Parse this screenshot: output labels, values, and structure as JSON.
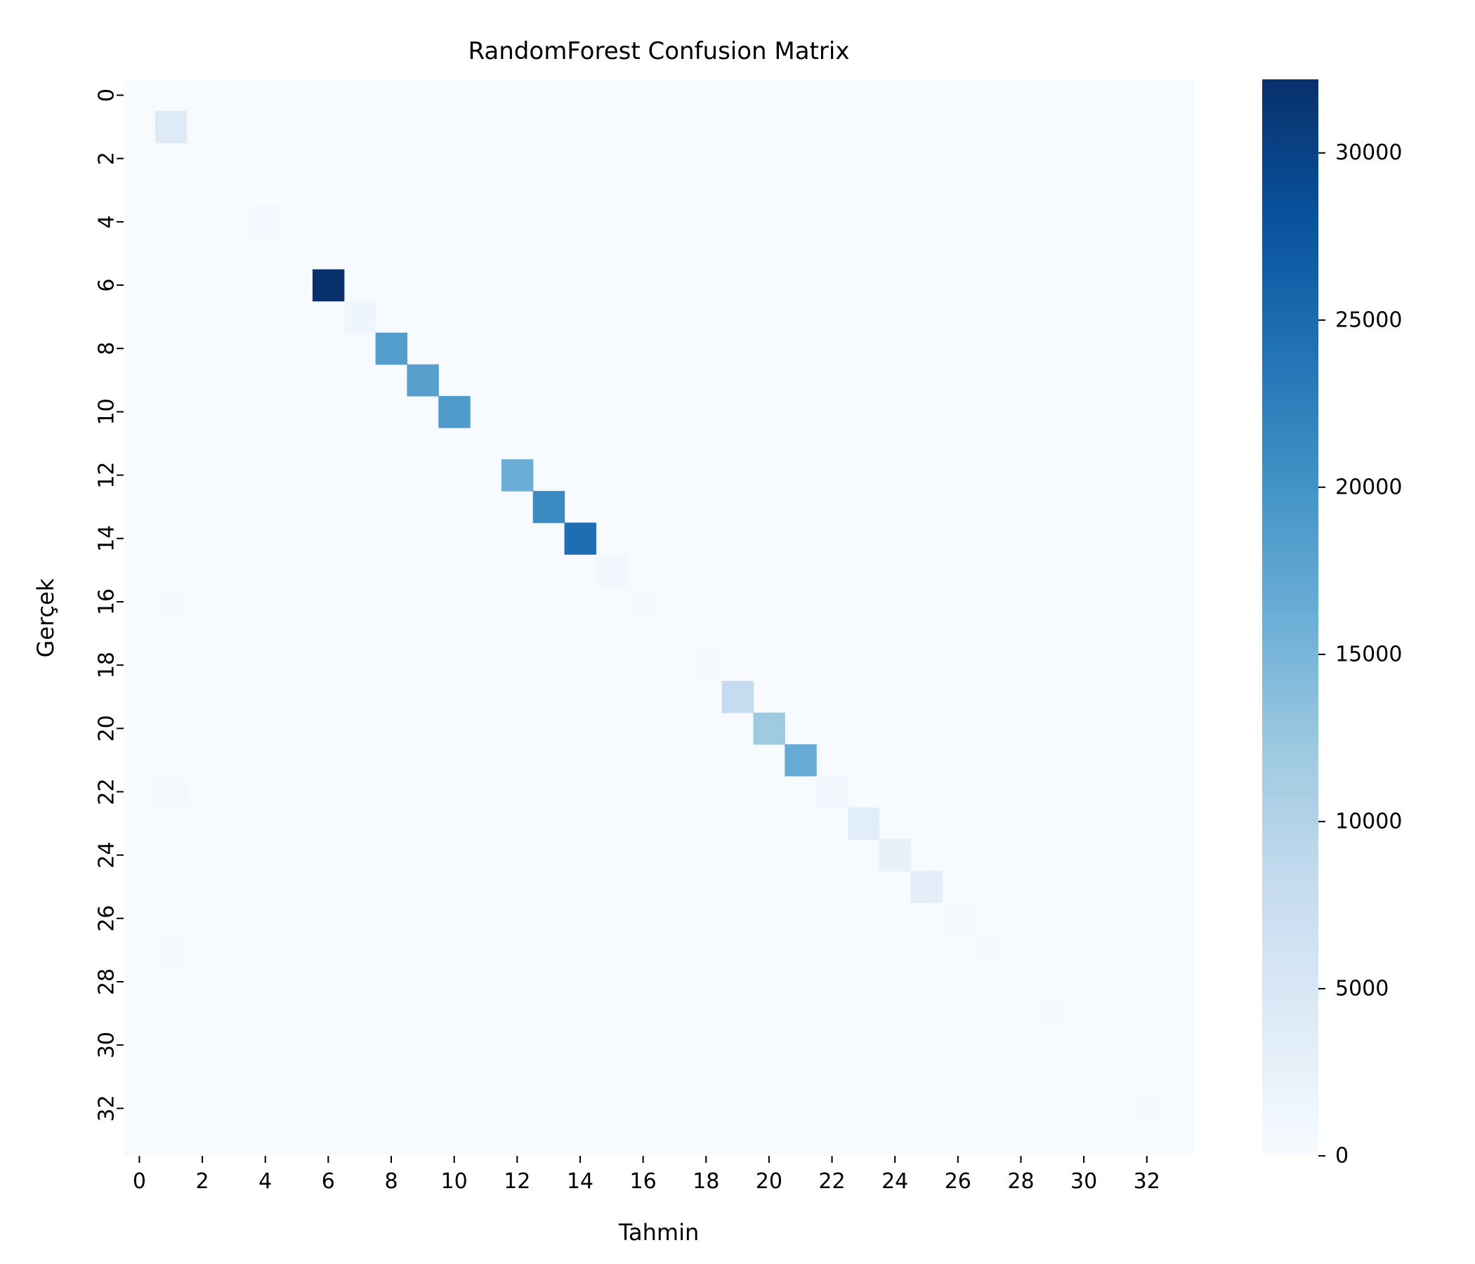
{
  "chart_data": {
    "type": "heatmap",
    "title": "RandomForest Confusion Matrix",
    "xlabel": "Tahmin",
    "ylabel": "Gerçek",
    "n_classes": 34,
    "x_tick_labels": [
      "0",
      "2",
      "4",
      "6",
      "8",
      "10",
      "12",
      "14",
      "16",
      "18",
      "20",
      "22",
      "24",
      "26",
      "28",
      "30",
      "32"
    ],
    "y_tick_labels": [
      "0",
      "2",
      "4",
      "6",
      "8",
      "10",
      "12",
      "14",
      "16",
      "18",
      "20",
      "22",
      "24",
      "26",
      "28",
      "30",
      "32"
    ],
    "colormap": "Blues",
    "color_low": "#f7fbff",
    "color_high": "#08306b",
    "vmin": 0,
    "vmax": 32200,
    "colorbar_ticks": [
      0,
      5000,
      10000,
      15000,
      20000,
      25000,
      30000
    ],
    "colorbar_tick_labels": [
      "0",
      "5000",
      "10000",
      "15000",
      "20000",
      "25000",
      "30000"
    ],
    "cells": [
      {
        "row": 1,
        "col": 1,
        "value": 4000
      },
      {
        "row": 4,
        "col": 4,
        "value": 800
      },
      {
        "row": 6,
        "col": 6,
        "value": 32200
      },
      {
        "row": 7,
        "col": 7,
        "value": 1500
      },
      {
        "row": 8,
        "col": 8,
        "value": 18500
      },
      {
        "row": 9,
        "col": 9,
        "value": 18000
      },
      {
        "row": 10,
        "col": 10,
        "value": 18800
      },
      {
        "row": 12,
        "col": 12,
        "value": 16000
      },
      {
        "row": 13,
        "col": 13,
        "value": 21000
      },
      {
        "row": 14,
        "col": 14,
        "value": 24500
      },
      {
        "row": 15,
        "col": 15,
        "value": 900
      },
      {
        "row": 16,
        "col": 1,
        "value": 300
      },
      {
        "row": 16,
        "col": 16,
        "value": 300
      },
      {
        "row": 18,
        "col": 18,
        "value": 200
      },
      {
        "row": 19,
        "col": 19,
        "value": 8000
      },
      {
        "row": 20,
        "col": 20,
        "value": 12000
      },
      {
        "row": 21,
        "col": 21,
        "value": 16500
      },
      {
        "row": 22,
        "col": 1,
        "value": 400
      },
      {
        "row": 22,
        "col": 22,
        "value": 1000
      },
      {
        "row": 23,
        "col": 23,
        "value": 3500
      },
      {
        "row": 24,
        "col": 24,
        "value": 2500
      },
      {
        "row": 25,
        "col": 25,
        "value": 3200
      },
      {
        "row": 26,
        "col": 26,
        "value": 300
      },
      {
        "row": 27,
        "col": 1,
        "value": 300
      },
      {
        "row": 27,
        "col": 27,
        "value": 150
      },
      {
        "row": 29,
        "col": 29,
        "value": 150
      },
      {
        "row": 32,
        "col": 32,
        "value": 300
      }
    ]
  }
}
